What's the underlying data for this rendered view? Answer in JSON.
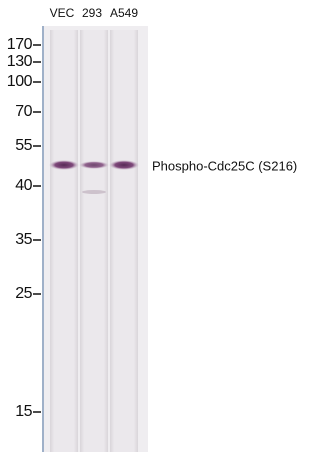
{
  "lanes": [
    "VEC",
    "293",
    "A549"
  ],
  "markers": [
    "170",
    "130",
    "100",
    "70",
    "55",
    "40",
    "35",
    "25",
    "15"
  ],
  "band_label": "Phospho-Cdc25C (S216)"
}
